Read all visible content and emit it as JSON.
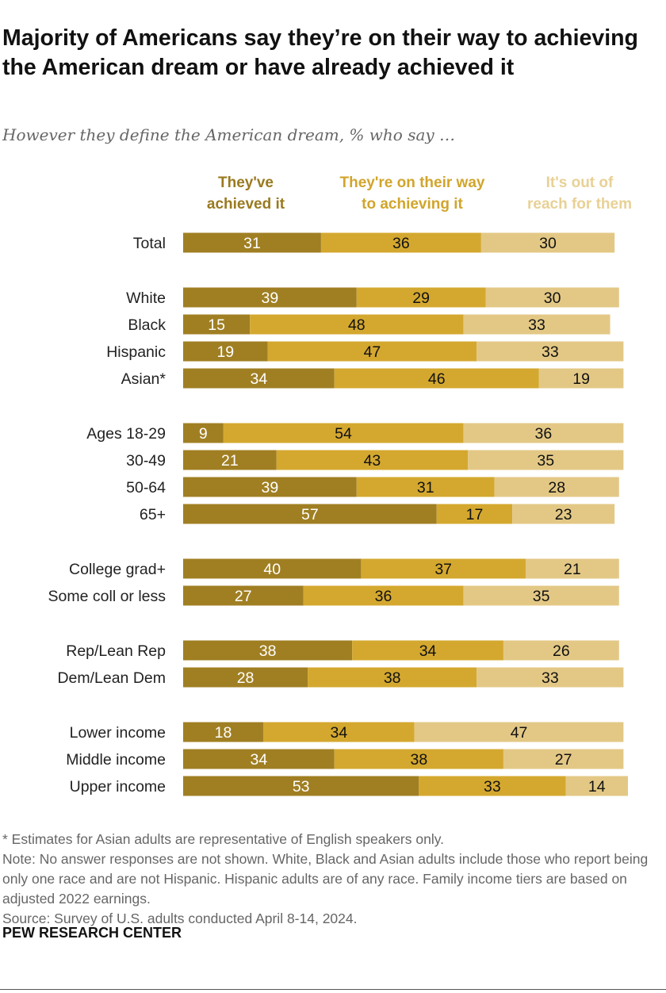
{
  "chart_data": {
    "type": "bar",
    "orientation": "horizontal",
    "stacked": true,
    "title": "Majority of Americans say they’re on their way to achieving the American dream or have already achieved it",
    "subtitle": "However they define the American dream, % who say …",
    "xlim": [
      0,
      100
    ],
    "grid": false,
    "legend_placement": "top",
    "series": [
      {
        "name": "They've achieved it",
        "color": "#a07f23",
        "label_color": "#9a7a20",
        "text_color": "#ffffff"
      },
      {
        "name": "They're on their way to achieving it",
        "color": "#d4a82f",
        "label_color": "#d1a52c",
        "text_color": "#111111"
      },
      {
        "name": "It's out of reach for them",
        "color": "#e3c885",
        "label_color": "#e8d195",
        "text_color": "#111111"
      }
    ],
    "groups": [
      {
        "rows": [
          {
            "category": "Total",
            "values": [
              31,
              36,
              30
            ]
          }
        ]
      },
      {
        "rows": [
          {
            "category": "White",
            "values": [
              39,
              29,
              30
            ]
          },
          {
            "category": "Black",
            "values": [
              15,
              48,
              33
            ]
          },
          {
            "category": "Hispanic",
            "values": [
              19,
              47,
              33
            ]
          },
          {
            "category": "Asian*",
            "values": [
              34,
              46,
              19
            ]
          }
        ]
      },
      {
        "rows": [
          {
            "category": "Ages 18-29",
            "values": [
              9,
              54,
              36
            ]
          },
          {
            "category": "30-49",
            "values": [
              21,
              43,
              35
            ]
          },
          {
            "category": "50-64",
            "values": [
              39,
              31,
              28
            ]
          },
          {
            "category": "65+",
            "values": [
              57,
              17,
              23
            ]
          }
        ]
      },
      {
        "rows": [
          {
            "category": "College grad+",
            "values": [
              40,
              37,
              21
            ]
          },
          {
            "category": "Some coll or less",
            "values": [
              27,
              36,
              35
            ]
          }
        ]
      },
      {
        "rows": [
          {
            "category": "Rep/Lean Rep",
            "values": [
              38,
              34,
              26
            ]
          },
          {
            "category": "Dem/Lean Dem",
            "values": [
              28,
              38,
              33
            ]
          }
        ]
      },
      {
        "rows": [
          {
            "category": "Lower income",
            "values": [
              18,
              34,
              47
            ]
          },
          {
            "category": "Middle income",
            "values": [
              34,
              38,
              27
            ]
          },
          {
            "category": "Upper income",
            "values": [
              53,
              33,
              14
            ]
          }
        ]
      }
    ]
  },
  "notes": {
    "asterisk": "* Estimates for Asian adults are representative of English speakers only.",
    "note": "Note: No answer responses are not shown. White, Black and Asian adults include those who report being only one race and are not Hispanic. Hispanic adults are of any race. Family income tiers are based on adjusted 2022 earnings.",
    "source": "Source: Survey of U.S. adults conducted April 8-14, 2024."
  },
  "brand": "PEW RESEARCH CENTER"
}
